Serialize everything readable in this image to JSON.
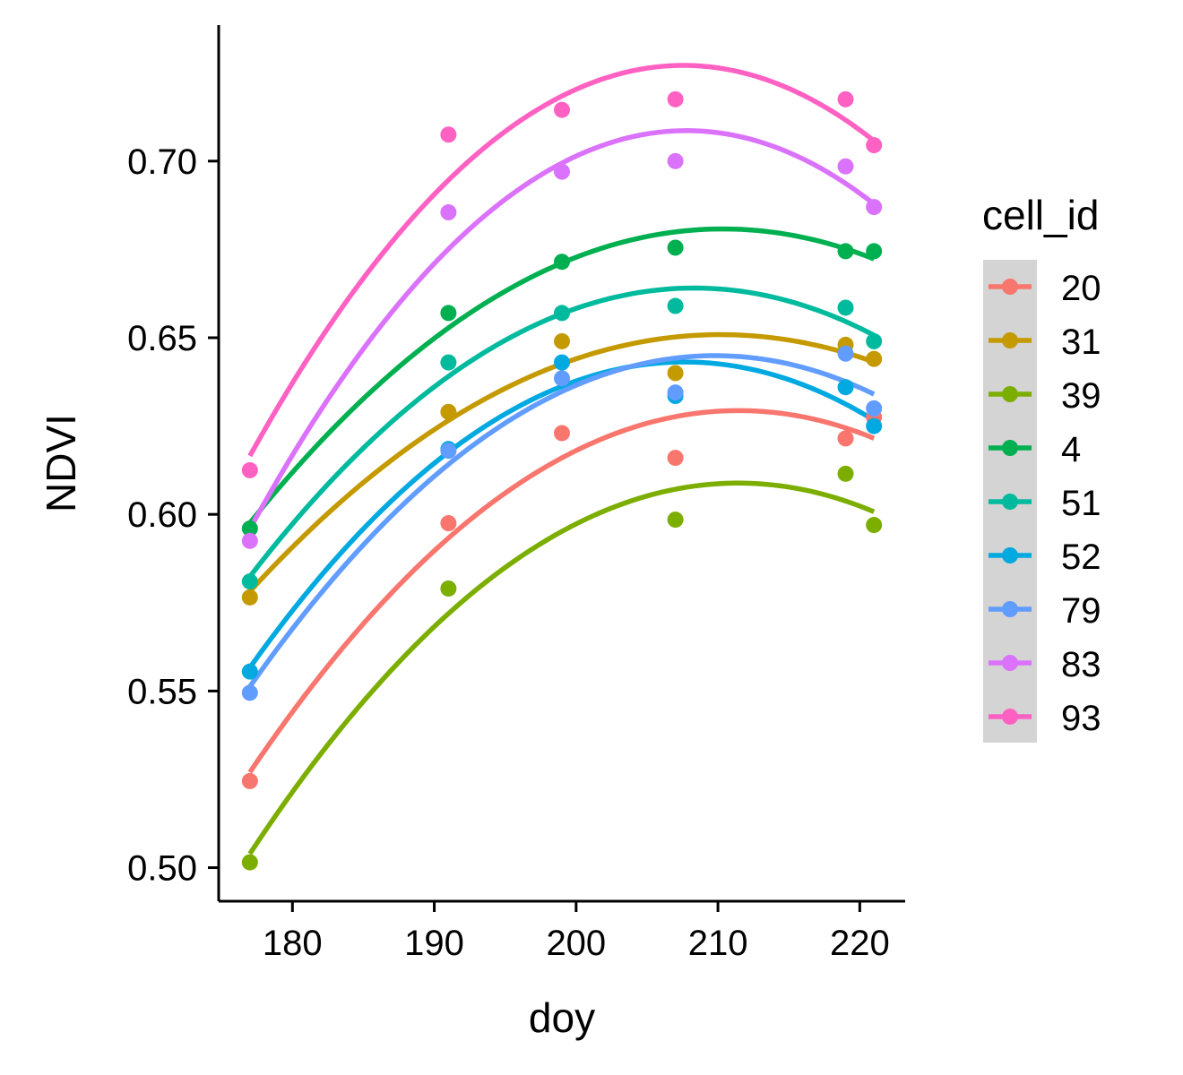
{
  "chart_data": {
    "type": "scatter",
    "xlabel": "doy",
    "ylabel": "NDVI",
    "xlim": [
      174.8,
      223.2
    ],
    "ylim": [
      0.4905,
      0.7385
    ],
    "xticks": [
      180,
      190,
      200,
      210,
      220
    ],
    "xtick_labels": [
      "180",
      "190",
      "200",
      "210",
      "220"
    ],
    "yticks": [
      0.5,
      0.55,
      0.6,
      0.65,
      0.7
    ],
    "ytick_labels": [
      "0.50",
      "0.55",
      "0.60",
      "0.65",
      "0.70"
    ],
    "grid": false,
    "smoother": "quadratic fit per series",
    "legend": {
      "title": "cell_id",
      "position": "right"
    },
    "x": [
      177,
      191,
      199,
      207,
      219,
      221
    ],
    "series": [
      {
        "name": "20",
        "color": "#F8766D",
        "values": [
          0.5245,
          0.5975,
          0.623,
          0.616,
          0.6215,
          0.6275
        ]
      },
      {
        "name": "31",
        "color": "#C49A00",
        "values": [
          0.5765,
          0.629,
          0.649,
          0.64,
          0.648,
          0.644
        ]
      },
      {
        "name": "39",
        "color": "#7CAE00",
        "values": [
          0.5015,
          0.579,
          null,
          0.5985,
          0.6115,
          0.597
        ]
      },
      {
        "name": "4",
        "color": "#00B050",
        "values": [
          0.596,
          0.657,
          0.6715,
          0.6755,
          0.6745,
          0.6745
        ]
      },
      {
        "name": "51",
        "color": "#00BA9E",
        "values": [
          0.581,
          0.643,
          0.657,
          0.659,
          0.6585,
          0.649
        ]
      },
      {
        "name": "52",
        "color": "#00A9E0",
        "values": [
          0.5555,
          0.6185,
          0.643,
          0.6335,
          0.636,
          0.625
        ]
      },
      {
        "name": "79",
        "color": "#619CFF",
        "values": [
          0.5495,
          0.618,
          0.6385,
          0.6345,
          0.6455,
          0.63
        ]
      },
      {
        "name": "83",
        "color": "#DB72FB",
        "values": [
          0.5925,
          0.6855,
          0.697,
          0.7,
          0.6985,
          0.687
        ]
      },
      {
        "name": "93",
        "color": "#FF61C3",
        "values": [
          0.6125,
          0.7075,
          0.7145,
          0.7175,
          0.7175,
          0.7045
        ]
      }
    ]
  }
}
